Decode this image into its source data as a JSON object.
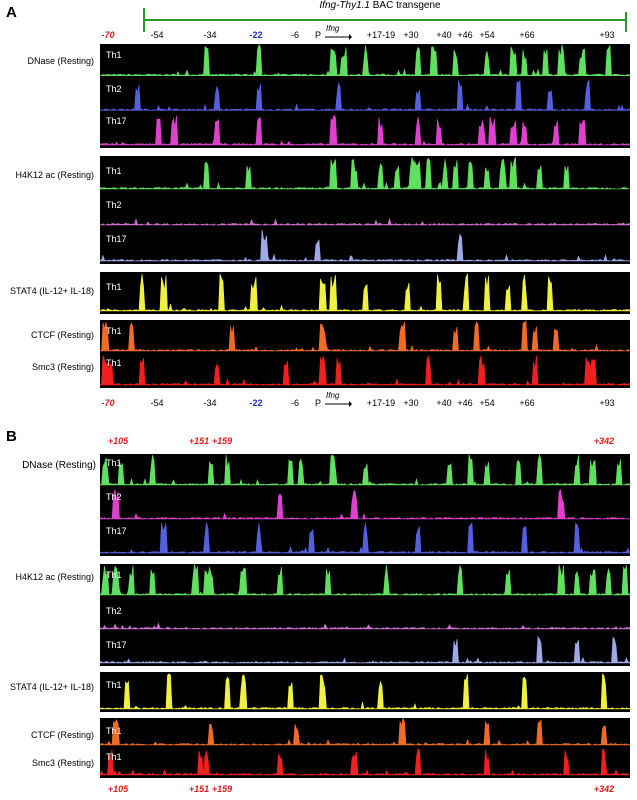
{
  "panel_a": {
    "label": "A",
    "bac_title_italic": "Ifng-Thy1.1",
    "bac_title_rest": " BAC transgene",
    "promoter": "P",
    "gene": "Ifng",
    "positions": [
      {
        "text": "-70",
        "style": "red"
      },
      {
        "text": "-54",
        "style": "plain"
      },
      {
        "text": "-34",
        "style": "plain"
      },
      {
        "text": "-22",
        "style": "blue"
      },
      {
        "text": "-6",
        "style": "plain"
      },
      {
        "text": "+17-19",
        "style": "plain"
      },
      {
        "text": "+30",
        "style": "plain"
      },
      {
        "text": "+40",
        "style": "plain"
      },
      {
        "text": "+46",
        "style": "plain"
      },
      {
        "text": "+54",
        "style": "plain"
      },
      {
        "text": "+66",
        "style": "plain"
      },
      {
        "text": "+93",
        "style": "plain"
      }
    ],
    "groups": [
      {
        "name": "DNase (Resting)",
        "tracks": [
          {
            "cell": "Th1",
            "color": "#5fe05f"
          },
          {
            "cell": "Th2",
            "color": "#5560e0"
          },
          {
            "cell": "Th17",
            "color": "#e040d0"
          }
        ]
      },
      {
        "name": "H4K12 ac (Resting)",
        "tracks": [
          {
            "cell": "Th1",
            "color": "#5fe05f"
          },
          {
            "cell": "Th2",
            "color": "#d070d0"
          },
          {
            "cell": "Th17",
            "color": "#a0a8e8"
          }
        ]
      },
      {
        "name": "STAT4 (IL-12+ IL-18)",
        "tracks": [
          {
            "cell": "Th1",
            "color": "#f0f040"
          }
        ]
      },
      {
        "name": "CTCF (Resting)",
        "tracks": [
          {
            "cell": "Th1",
            "color": "#f06a2a"
          }
        ]
      },
      {
        "name": "Smc3 (Resting)",
        "tracks": [
          {
            "cell": "Th1",
            "color": "#f02020"
          }
        ]
      }
    ]
  },
  "panel_b": {
    "label": "B",
    "positions": [
      {
        "text": "+105"
      },
      {
        "text": "+151"
      },
      {
        "text": "+159"
      },
      {
        "text": "+342"
      }
    ],
    "groups": [
      {
        "name": "DNase (Resting)",
        "tracks": [
          {
            "cell": "Th1",
            "color": "#5fe05f"
          },
          {
            "cell": "Th2",
            "color": "#e040d0"
          },
          {
            "cell": "Th17",
            "color": "#5560e0"
          }
        ]
      },
      {
        "name": "H4K12 ac (Resting)",
        "tracks": [
          {
            "cell": "Th1",
            "color": "#5fe05f"
          },
          {
            "cell": "Th2",
            "color": "#d070d0"
          },
          {
            "cell": "Th17",
            "color": "#a0a8e8"
          }
        ]
      },
      {
        "name": "STAT4 (IL-12+ IL-18)",
        "tracks": [
          {
            "cell": "Th1",
            "color": "#f0f040"
          }
        ]
      },
      {
        "name": "CTCF (Resting)",
        "tracks": [
          {
            "cell": "Th1",
            "color": "#f06a2a"
          }
        ]
      },
      {
        "name": "Smc3 (Resting)",
        "tracks": [
          {
            "cell": "Th1",
            "color": "#f02020"
          }
        ]
      }
    ]
  }
}
